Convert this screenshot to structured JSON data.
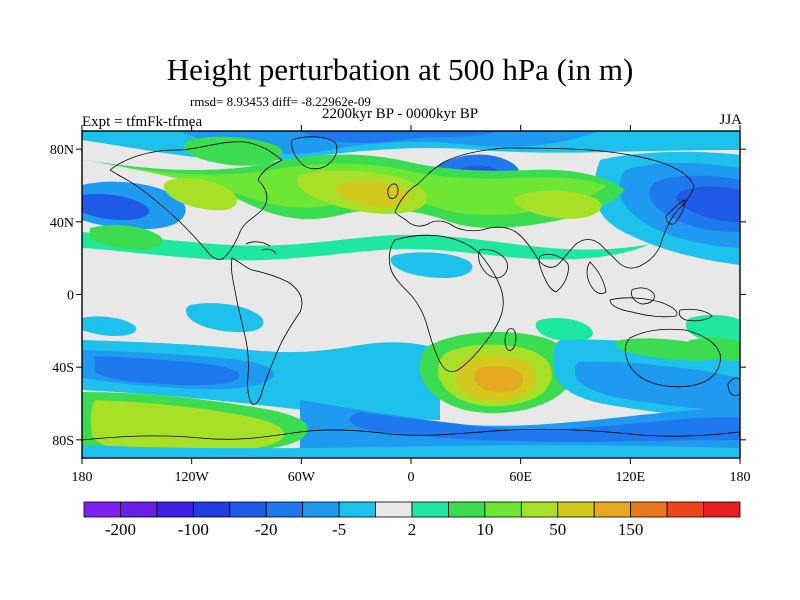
{
  "figure": {
    "title": "Height perturbation at 500 hPa (in m)",
    "stats_line": "rmsd= 8.93453  diff= -8.22962e-09",
    "period": "2200kyr BP - 0000kyr BP",
    "experiment": "Expt = tfmFk-tfmea",
    "season": "JJA"
  },
  "map": {
    "projection": "cylindrical-equidistant",
    "lon_range": [
      -180,
      180
    ],
    "lat_range": [
      -90,
      90
    ],
    "lon_ticks": [
      {
        "value": -180,
        "label": "180"
      },
      {
        "value": -120,
        "label": "120W"
      },
      {
        "value": -60,
        "label": "60W"
      },
      {
        "value": 0,
        "label": "0"
      },
      {
        "value": 60,
        "label": "60E"
      },
      {
        "value": 120,
        "label": "120E"
      },
      {
        "value": 180,
        "label": "180"
      }
    ],
    "lat_ticks": [
      {
        "value": 80,
        "label": "80N"
      },
      {
        "value": 40,
        "label": "40N"
      },
      {
        "value": 0,
        "label": "0"
      },
      {
        "value": -40,
        "label": "40S"
      },
      {
        "value": -80,
        "label": "80S"
      }
    ],
    "background_color": "#e8e8e8",
    "coastline_color": "#000000"
  },
  "chart_data": {
    "type": "heatmap",
    "field": "500 hPa height perturbation (m)",
    "approx_anomaly_regions": [
      {
        "region": "Arctic / high-latitude Atlantic sector",
        "lon": -30,
        "lat": 75,
        "level": "-5"
      },
      {
        "region": "Northwest Pacific",
        "lon": 160,
        "lat": 45,
        "level": "-20"
      },
      {
        "region": "Northern Siberia",
        "lon": 60,
        "lat": 65,
        "level": "-20"
      },
      {
        "region": "North Atlantic / Europe",
        "lon": -10,
        "lat": 50,
        "level": "50"
      },
      {
        "region": "Central Asia",
        "lon": 85,
        "lat": 40,
        "level": "10"
      },
      {
        "region": "Southern Indian Ocean",
        "lon": 45,
        "lat": -40,
        "level": "50"
      },
      {
        "region": "South Pacific",
        "lon": -140,
        "lat": -65,
        "level": "10"
      },
      {
        "region": "Southern Ocean",
        "lon": 10,
        "lat": -60,
        "level": "-20"
      }
    ]
  },
  "colorbar": {
    "colors": [
      "#7f1ff0",
      "#6a1ee6",
      "#3f1fe0",
      "#1f3ce0",
      "#1f5ae6",
      "#1e78ee",
      "#1e9af0",
      "#1ec0ec",
      "#e8e8e8",
      "#1ee8a0",
      "#3cdc50",
      "#6ee634",
      "#a8e028",
      "#d2c81e",
      "#e6a81e",
      "#ec781e",
      "#ec461e",
      "#e81e1e"
    ],
    "tick_labels": [
      {
        "boundary": 1,
        "label": "-200"
      },
      {
        "boundary": 3,
        "label": "-100"
      },
      {
        "boundary": 5,
        "label": "-20"
      },
      {
        "boundary": 7,
        "label": "-5"
      },
      {
        "boundary": 9,
        "label": "2"
      },
      {
        "boundary": 11,
        "label": "10"
      },
      {
        "boundary": 13,
        "label": "50"
      },
      {
        "boundary": 15,
        "label": "150"
      }
    ]
  }
}
